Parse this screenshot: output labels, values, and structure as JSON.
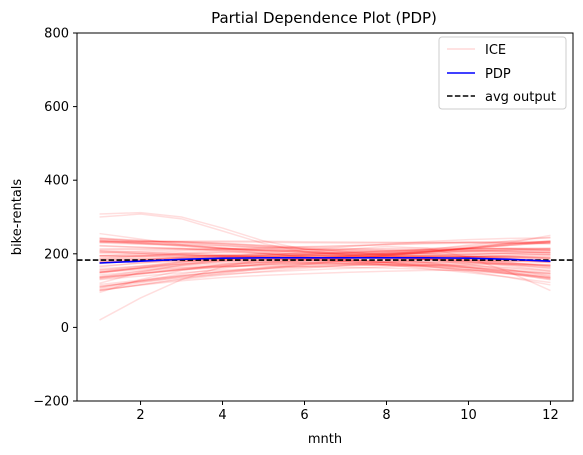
{
  "chart_data": {
    "type": "line",
    "title": "Partial Dependence Plot (PDP)",
    "xlabel": "mnth",
    "ylabel": "bike-rentals",
    "xlim": [
      0.45,
      12.55
    ],
    "ylim": [
      -200,
      800
    ],
    "xticks": [
      2,
      4,
      6,
      8,
      10,
      12
    ],
    "yticks": [
      -200,
      0,
      200,
      400,
      600,
      800
    ],
    "grid": false,
    "legend": {
      "position": "top-right",
      "entries": [
        {
          "label": "ICE",
          "style": "solid",
          "color": "#ff0000",
          "alpha": 0.15
        },
        {
          "label": "PDP",
          "style": "solid",
          "color": "#0000ff"
        },
        {
          "label": "avg output",
          "style": "dashed",
          "color": "#000000"
        }
      ]
    },
    "x": [
      1,
      2,
      3,
      4,
      5,
      6,
      7,
      8,
      9,
      10,
      11,
      12
    ],
    "series": [
      {
        "name": "PDP",
        "color": "#0000ff",
        "values": [
          175,
          180,
          185,
          188,
          189,
          189,
          189,
          189,
          189,
          188,
          185,
          180
        ]
      },
      {
        "name": "avg output",
        "color": "#000000",
        "style": "dashed",
        "value": 183
      }
    ],
    "ice": {
      "label": "ICE",
      "color": "#ff0000",
      "count": 70,
      "sample_lines": [
        [
          300,
          308,
          295,
          262,
          228,
          205,
          195,
          190,
          186,
          183,
          180,
          177
        ],
        [
          308,
          312,
          300,
          270,
          235,
          212,
          198,
          190,
          184,
          178,
          172,
          168
        ],
        [
          20,
          80,
          130,
          165,
          185,
          195,
          198,
          200,
          200,
          200,
          200,
          198
        ],
        [
          95,
          130,
          155,
          172,
          182,
          187,
          190,
          192,
          193,
          193,
          192,
          190
        ],
        [
          255,
          240,
          225,
          215,
          208,
          203,
          200,
          200,
          205,
          215,
          230,
          250
        ],
        [
          120,
          150,
          170,
          185,
          195,
          205,
          212,
          220,
          215,
          190,
          150,
          100
        ]
      ]
    }
  }
}
